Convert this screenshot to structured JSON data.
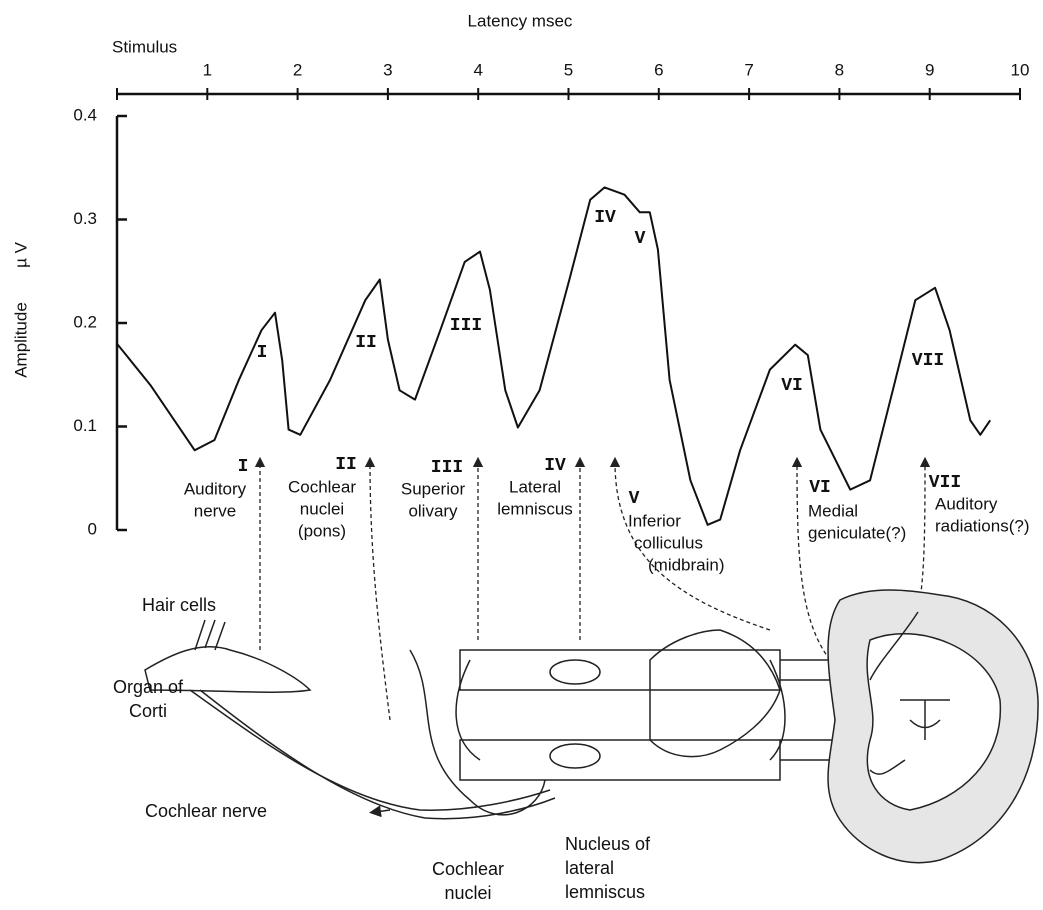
{
  "chart_data": {
    "type": "line",
    "xlabel": "Latency msec",
    "ylabel": [
      "Amplitude",
      "µ V"
    ],
    "xlim": [
      0,
      10
    ],
    "xticks": [
      {
        "value": 0,
        "label": "Stimulus"
      },
      1,
      2,
      3,
      4,
      5,
      6,
      7,
      8,
      9,
      10
    ],
    "ylim": [
      0,
      0.4
    ],
    "yticks": [
      0,
      0.1,
      0.2,
      0.3,
      0.4
    ],
    "color": "#111111",
    "x": [
      0,
      0.37,
      0.86,
      1.08,
      1.35,
      1.6,
      1.75,
      1.83,
      1.9,
      2.03,
      2.36,
      2.75,
      2.91,
      3.0,
      3.13,
      3.3,
      3.58,
      3.85,
      4.02,
      4.13,
      4.3,
      4.44,
      4.68,
      5.01,
      5.24,
      5.4,
      5.62,
      5.79,
      5.9,
      5.99,
      6.12,
      6.35,
      6.54,
      6.68,
      6.9,
      7.23,
      7.51,
      7.65,
      7.79,
      8.12,
      8.34,
      8.62,
      8.84,
      9.06,
      9.22,
      9.45,
      9.56,
      9.67
    ],
    "values": [
      0.18,
      0.14,
      0.077,
      0.087,
      0.145,
      0.193,
      0.21,
      0.164,
      0.097,
      0.092,
      0.145,
      0.222,
      0.242,
      0.184,
      0.135,
      0.126,
      0.193,
      0.259,
      0.269,
      0.232,
      0.135,
      0.099,
      0.135,
      0.242,
      0.319,
      0.331,
      0.324,
      0.307,
      0.307,
      0.271,
      0.145,
      0.048,
      0.005,
      0.01,
      0.077,
      0.155,
      0.179,
      0.169,
      0.097,
      0.039,
      0.048,
      0.145,
      0.222,
      0.234,
      0.193,
      0.106,
      0.092,
      0.106
    ],
    "peak_labels": [
      "I",
      "II",
      "III",
      "IV",
      "V",
      "VI",
      "VII"
    ]
  },
  "stages": [
    {
      "numeral": "I",
      "lines": [
        "Auditory",
        "nerve"
      ]
    },
    {
      "numeral": "II",
      "lines": [
        "Cochlear",
        "nuclei",
        "(pons)"
      ]
    },
    {
      "numeral": "III",
      "lines": [
        "Superior",
        "olivary"
      ]
    },
    {
      "numeral": "IV",
      "lines": [
        "Lateral",
        "lemniscus"
      ]
    },
    {
      "numeral": "V",
      "lines": [
        "Inferior",
        "colliculus",
        "(midbrain)"
      ]
    },
    {
      "numeral": "VI",
      "lines": [
        "Medial",
        "geniculate(?)"
      ]
    },
    {
      "numeral": "VII",
      "lines": [
        "Auditory",
        "radiations(?)"
      ]
    }
  ],
  "anatomy_labels": [
    [
      "Hair cells"
    ],
    [
      "Organ of",
      "Corti"
    ],
    [
      "Cochlear nerve"
    ],
    [
      "Cochlear",
      "nuclei"
    ],
    [
      "Nucleus of",
      "lateral",
      "lemniscus"
    ]
  ]
}
